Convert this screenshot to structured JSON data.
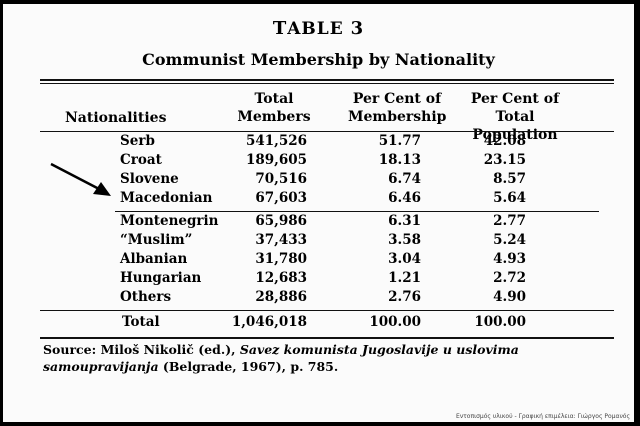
{
  "table": {
    "label_prefix": "T",
    "label_rest": "ABLE",
    "label_number": "3",
    "subtitle": "Communist Membership by Nationality",
    "headers": {
      "nationalities": "Nationalities",
      "total_line1": "Total",
      "total_line2": "Members",
      "pcm_line1": "Per Cent of",
      "pcm_line2": "Membership",
      "pctp_line1": "Per Cent of",
      "pctp_line2": "Total Population"
    },
    "rows": [
      {
        "name": "Serb",
        "members": "541,526",
        "pct_membership": "51.77",
        "pct_population": "42.08"
      },
      {
        "name": "Croat",
        "members": "189,605",
        "pct_membership": "18.13",
        "pct_population": "23.15"
      },
      {
        "name": "Slovene",
        "members": "70,516",
        "pct_membership": "6.74",
        "pct_population": "8.57"
      },
      {
        "name": "Macedonian",
        "members": "67,603",
        "pct_membership": "6.46",
        "pct_population": "5.64"
      },
      {
        "name": "Montenegrin",
        "members": "65,986",
        "pct_membership": "6.31",
        "pct_population": "2.77"
      },
      {
        "name": "“Muslim”",
        "members": "37,433",
        "pct_membership": "3.58",
        "pct_population": "5.24"
      },
      {
        "name": "Albanian",
        "members": "31,780",
        "pct_membership": "3.04",
        "pct_population": "4.93"
      },
      {
        "name": "Hungarian",
        "members": "12,683",
        "pct_membership": "1.21",
        "pct_population": "2.72"
      },
      {
        "name": "Others",
        "members": "28,886",
        "pct_membership": "2.76",
        "pct_population": "4.90"
      }
    ],
    "total": {
      "name": "Total",
      "members": "1,046,018",
      "pct_membership": "100.00",
      "pct_population": "100.00"
    }
  },
  "source": {
    "lead": "Source: Miloš Nikolič (ed.), ",
    "title": "Savez komunista Jugoslavije u uslovima samoupravijanja",
    "tail": " (Belgrade, 1967), p. 785."
  },
  "watermark": "Εντοπισμός υλικού - Γραφική επιμέλεια: Γιώργος Ρομανός"
}
